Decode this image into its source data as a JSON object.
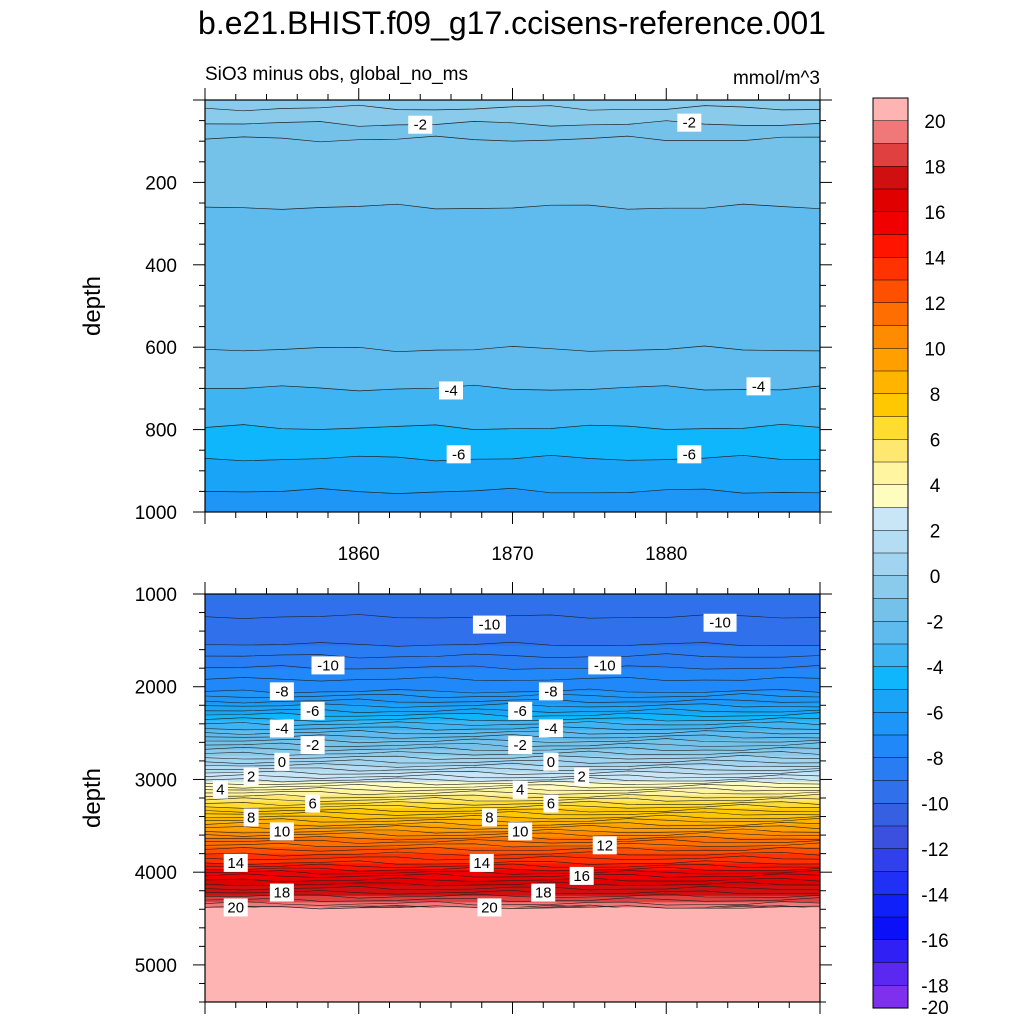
{
  "title": "b.e21.BHIST.f09_g17.ccisens-reference.001",
  "left_subtitle": "SiO3 minus obs, global_no_ms",
  "right_subtitle": "mmol/m^3",
  "colorbar": {
    "labels": [
      "20",
      "18",
      "16",
      "14",
      "12",
      "10",
      "8",
      "6",
      "4",
      "2",
      "0",
      "-2",
      "-4",
      "-6",
      "-8",
      "-10",
      "-12",
      "-14",
      "-16",
      "-18",
      "-20"
    ],
    "colors_top_to_bottom": [
      "#ffb4b4",
      "#f07878",
      "#e04040",
      "#d01010",
      "#e00000",
      "#f00000",
      "#ff1400",
      "#ff3200",
      "#ff5000",
      "#ff6e00",
      "#ff8c00",
      "#ffa000",
      "#ffb400",
      "#ffc800",
      "#ffdc30",
      "#ffe870",
      "#fff4a0",
      "#fffcc0",
      "#c8e6f6",
      "#b4dcf2",
      "#a0d4f0",
      "#8acbec",
      "#74c2ea",
      "#5fbbee",
      "#3eb4f2",
      "#10b6fc",
      "#1aa4f8",
      "#1e96f8",
      "#2088f8",
      "#2a7cf2",
      "#3070ea",
      "#3660e2",
      "#3c50e0",
      "#3040ec",
      "#2030f4",
      "#1020f8",
      "#0a10f8",
      "#3020f4",
      "#5a28f0",
      "#7e30ee"
    ]
  },
  "chart_data": [
    {
      "type": "contour",
      "panel": "top",
      "x_ticks": [
        "1860",
        "1870",
        "1880"
      ],
      "xlim": [
        1850,
        1890
      ],
      "ylabel": "depth",
      "y_ticks": [
        "200",
        "400",
        "600",
        "800",
        "1000"
      ],
      "ylim": [
        0,
        1000
      ],
      "levels": [
        {
          "depth": 20,
          "value": -1
        },
        {
          "depth": 58,
          "value": -2
        },
        {
          "depth": 95,
          "value": -2.5
        },
        {
          "depth": 260,
          "value": -3
        },
        {
          "depth": 605,
          "value": -3.5
        },
        {
          "depth": 700,
          "value": -4
        },
        {
          "depth": 795,
          "value": -5
        },
        {
          "depth": 870,
          "value": -6
        },
        {
          "depth": 950,
          "value": -7
        }
      ],
      "contour_labels": [
        {
          "text": "-2",
          "x": 1864,
          "depth": 60
        },
        {
          "text": "-2",
          "x": 1881.5,
          "depth": 55
        },
        {
          "text": "-4",
          "x": 1866,
          "depth": 705
        },
        {
          "text": "-4",
          "x": 1886,
          "depth": 695
        },
        {
          "text": "-6",
          "x": 1866.5,
          "depth": 860
        },
        {
          "text": "-6",
          "x": 1881.5,
          "depth": 860
        }
      ]
    },
    {
      "type": "contour",
      "panel": "bottom",
      "xlim": [
        1850,
        1890
      ],
      "ylabel": "depth",
      "y_ticks": [
        "1000",
        "2000",
        "3000",
        "4000",
        "5000"
      ],
      "ylim": [
        1000,
        5400
      ],
      "contour_labels": [
        {
          "text": "-10",
          "x": 1868.5,
          "depth": 1330
        },
        {
          "text": "-10",
          "x": 1883.5,
          "depth": 1310
        },
        {
          "text": "-10",
          "x": 1858,
          "depth": 1770
        },
        {
          "text": "-10",
          "x": 1876,
          "depth": 1770
        },
        {
          "text": "-8",
          "x": 1855,
          "depth": 2050
        },
        {
          "text": "-8",
          "x": 1872.5,
          "depth": 2050
        },
        {
          "text": "-6",
          "x": 1857,
          "depth": 2260
        },
        {
          "text": "-6",
          "x": 1870.5,
          "depth": 2260
        },
        {
          "text": "-4",
          "x": 1855,
          "depth": 2450
        },
        {
          "text": "-4",
          "x": 1872.5,
          "depth": 2450
        },
        {
          "text": "-2",
          "x": 1857,
          "depth": 2630
        },
        {
          "text": "-2",
          "x": 1870.5,
          "depth": 2630
        },
        {
          "text": "0",
          "x": 1855,
          "depth": 2810
        },
        {
          "text": "0",
          "x": 1872.5,
          "depth": 2810
        },
        {
          "text": "2",
          "x": 1853,
          "depth": 2970
        },
        {
          "text": "2",
          "x": 1874.5,
          "depth": 2970
        },
        {
          "text": "4",
          "x": 1851,
          "depth": 3110
        },
        {
          "text": "4",
          "x": 1870.5,
          "depth": 3110
        },
        {
          "text": "6",
          "x": 1857,
          "depth": 3260
        },
        {
          "text": "6",
          "x": 1872.5,
          "depth": 3260
        },
        {
          "text": "8",
          "x": 1853,
          "depth": 3410
        },
        {
          "text": "8",
          "x": 1868.5,
          "depth": 3410
        },
        {
          "text": "10",
          "x": 1855,
          "depth": 3560
        },
        {
          "text": "10",
          "x": 1870.5,
          "depth": 3560
        },
        {
          "text": "12",
          "x": 1876,
          "depth": 3710
        },
        {
          "text": "14",
          "x": 1852,
          "depth": 3900
        },
        {
          "text": "14",
          "x": 1868,
          "depth": 3900
        },
        {
          "text": "16",
          "x": 1874.5,
          "depth": 4040
        },
        {
          "text": "18",
          "x": 1855,
          "depth": 4220
        },
        {
          "text": "18",
          "x": 1872,
          "depth": 4220
        },
        {
          "text": "20",
          "x": 1852,
          "depth": 4380
        },
        {
          "text": "20",
          "x": 1868.5,
          "depth": 4380
        }
      ]
    }
  ]
}
